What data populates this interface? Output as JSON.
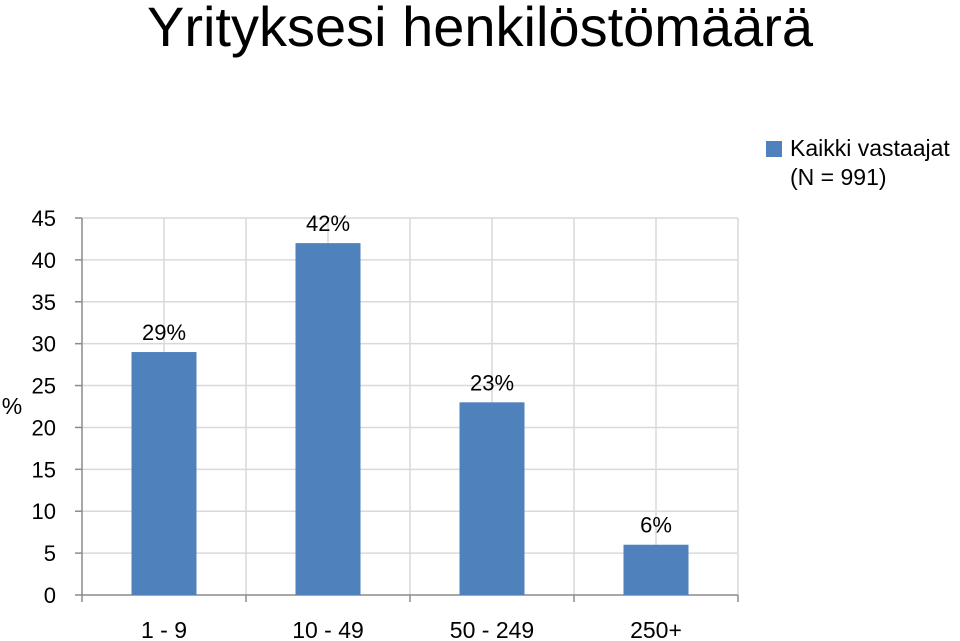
{
  "title": "Yrityksesi henkilöstömäärä",
  "chart_data": {
    "type": "bar",
    "categories": [
      "1 - 9",
      "10 - 49",
      "50 - 249",
      "250+"
    ],
    "series": [
      {
        "name": "Kaikki vastaajat (N = 991)",
        "name_lines": [
          "Kaikki vastaajat",
          "(N = 991)"
        ],
        "values": [
          29,
          42,
          23,
          6
        ],
        "labels": [
          "29%",
          "42%",
          "23%",
          "6%"
        ],
        "color": "#4f81bd"
      }
    ],
    "ylabel": "%",
    "ylim": [
      0,
      45
    ],
    "yticks": [
      0,
      5,
      10,
      15,
      20,
      25,
      30,
      35,
      40,
      45
    ],
    "grid": true,
    "legend": "top-right"
  }
}
